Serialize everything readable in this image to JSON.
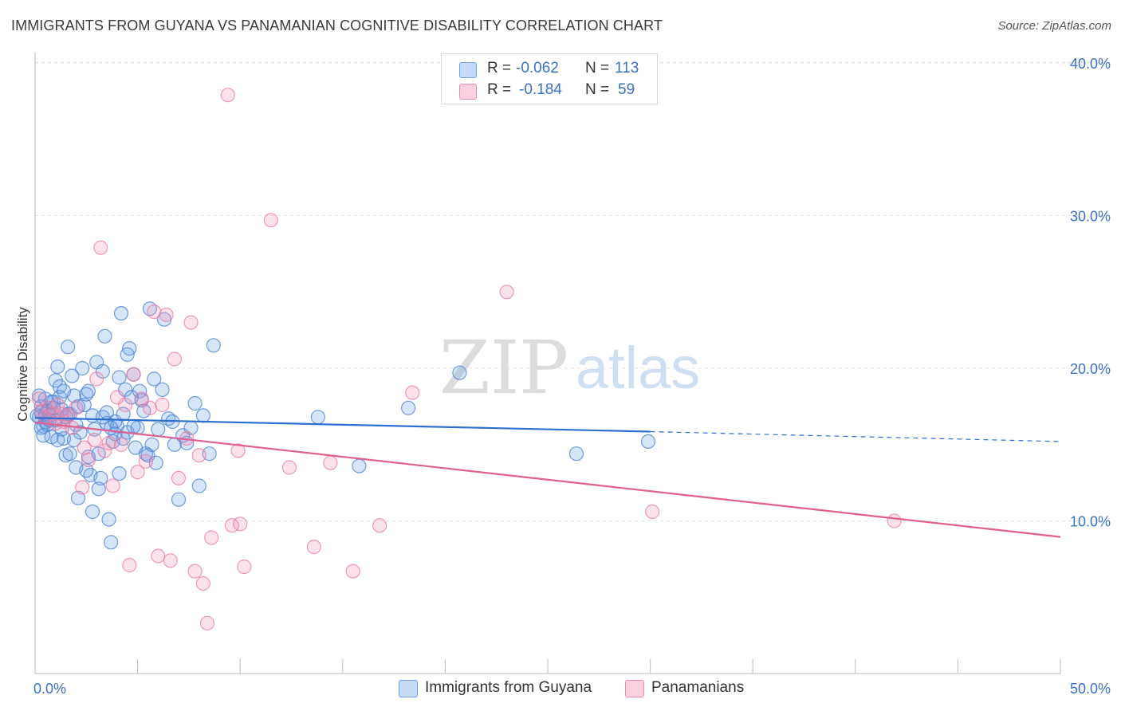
{
  "header": {
    "title": "IMMIGRANTS FROM GUYANA VS PANAMANIAN COGNITIVE DISABILITY CORRELATION CHART",
    "source": "Source: ZipAtlas.com"
  },
  "watermark": {
    "zip": "ZIP",
    "atlas": "atlas"
  },
  "legend_top": {
    "rows": [
      {
        "r_label": "R =",
        "r_value": "-0.062",
        "n_label": "N =",
        "n_value": "113",
        "color": "#6fa3e8"
      },
      {
        "r_label": "R =",
        "r_value": "-0.184",
        "n_label": "N =",
        "n_value": "59",
        "color": "#f08bb0"
      }
    ]
  },
  "legend_bottom": {
    "items": [
      {
        "label": "Immigrants from Guyana",
        "color": "#6fa3e8"
      },
      {
        "label": "Panamanians",
        "color": "#f08bb0"
      }
    ]
  },
  "chart_data": {
    "type": "scatter",
    "title": "IMMIGRANTS FROM GUYANA VS PANAMANIAN COGNITIVE DISABILITY CORRELATION CHART",
    "xlabel": "",
    "ylabel": "Cognitive Disability",
    "xlim": [
      0,
      50
    ],
    "ylim": [
      0,
      42
    ],
    "x_tick_labels": [
      "0.0%",
      "50.0%"
    ],
    "y_ticks": [
      10,
      20,
      30,
      40
    ],
    "y_tick_labels": [
      "10.0%",
      "20.0%",
      "30.0%",
      "40.0%"
    ],
    "grid": true,
    "legend_position": "top-center and bottom",
    "series": [
      {
        "name": "Immigrants from Guyana",
        "color": "#6fa3e8",
        "line_color": "#2d6fd0",
        "trend": {
          "x0": 0,
          "y0": 16.75,
          "x1": 30,
          "y1": 15.85,
          "dashed_to_x": 50,
          "dashed_to_y": 15.2
        },
        "points": [
          [
            0.2,
            16.8
          ],
          [
            0.3,
            17.5
          ],
          [
            0.4,
            16.2
          ],
          [
            0.5,
            18.0
          ],
          [
            0.5,
            16.5
          ],
          [
            0.6,
            17.2
          ],
          [
            0.7,
            16.9
          ],
          [
            0.8,
            15.5
          ],
          [
            0.9,
            17.8
          ],
          [
            1.0,
            19.2
          ],
          [
            1.0,
            16.6
          ],
          [
            1.1,
            20.1
          ],
          [
            1.2,
            18.8
          ],
          [
            1.3,
            17.3
          ],
          [
            1.4,
            15.4
          ],
          [
            1.5,
            14.3
          ],
          [
            1.5,
            16.8
          ],
          [
            1.6,
            21.4
          ],
          [
            1.7,
            17.0
          ],
          [
            1.8,
            19.5
          ],
          [
            1.9,
            18.2
          ],
          [
            2.0,
            16.3
          ],
          [
            2.0,
            13.5
          ],
          [
            2.1,
            11.5
          ],
          [
            2.2,
            15.8
          ],
          [
            2.3,
            20.0
          ],
          [
            2.4,
            17.6
          ],
          [
            2.5,
            18.3
          ],
          [
            2.6,
            14.2
          ],
          [
            2.7,
            13.0
          ],
          [
            2.8,
            10.6
          ],
          [
            2.9,
            16.0
          ],
          [
            3.0,
            20.4
          ],
          [
            3.1,
            14.4
          ],
          [
            3.2,
            12.8
          ],
          [
            3.3,
            19.8
          ],
          [
            3.4,
            22.1
          ],
          [
            3.5,
            16.4
          ],
          [
            3.6,
            10.1
          ],
          [
            3.7,
            8.6
          ],
          [
            3.8,
            15.2
          ],
          [
            3.9,
            16.5
          ],
          [
            4.0,
            16.2
          ],
          [
            4.1,
            13.1
          ],
          [
            4.2,
            23.6
          ],
          [
            4.3,
            17.0
          ],
          [
            4.4,
            18.6
          ],
          [
            4.5,
            15.8
          ],
          [
            4.6,
            21.3
          ],
          [
            4.7,
            18.1
          ],
          [
            4.8,
            19.6
          ],
          [
            4.9,
            14.8
          ],
          [
            5.0,
            16.1
          ],
          [
            5.1,
            18.5
          ],
          [
            5.2,
            17.9
          ],
          [
            5.3,
            17.2
          ],
          [
            5.4,
            14.4
          ],
          [
            5.5,
            14.3
          ],
          [
            5.6,
            23.9
          ],
          [
            5.7,
            15.0
          ],
          [
            5.8,
            19.3
          ],
          [
            5.9,
            13.8
          ],
          [
            6.0,
            16.0
          ],
          [
            6.2,
            18.6
          ],
          [
            6.3,
            23.2
          ],
          [
            6.5,
            16.7
          ],
          [
            6.7,
            16.5
          ],
          [
            6.8,
            15.0
          ],
          [
            7.0,
            11.4
          ],
          [
            7.2,
            15.6
          ],
          [
            7.4,
            15.1
          ],
          [
            7.6,
            16.1
          ],
          [
            7.8,
            17.7
          ],
          [
            8.0,
            12.3
          ],
          [
            8.2,
            16.9
          ],
          [
            8.5,
            14.4
          ],
          [
            8.7,
            21.5
          ],
          [
            0.3,
            16.1
          ],
          [
            0.6,
            16.3
          ],
          [
            0.8,
            17.8
          ],
          [
            1.2,
            18.1
          ],
          [
            1.3,
            16.0
          ],
          [
            1.7,
            14.4
          ],
          [
            1.9,
            15.3
          ],
          [
            2.1,
            17.5
          ],
          [
            2.5,
            13.3
          ],
          [
            2.6,
            18.5
          ],
          [
            2.8,
            16.9
          ],
          [
            3.1,
            12.1
          ],
          [
            3.3,
            16.8
          ],
          [
            3.5,
            17.1
          ],
          [
            3.7,
            16.1
          ],
          [
            3.9,
            15.7
          ],
          [
            4.1,
            19.4
          ],
          [
            4.3,
            15.4
          ],
          [
            4.5,
            20.9
          ],
          [
            4.8,
            16.2
          ],
          [
            0.1,
            16.9
          ],
          [
            0.2,
            18.2
          ],
          [
            0.4,
            15.6
          ],
          [
            0.5,
            17.0
          ],
          [
            0.7,
            16.6
          ],
          [
            0.9,
            17.4
          ],
          [
            1.1,
            15.3
          ],
          [
            1.4,
            18.5
          ],
          [
            1.6,
            17.0
          ],
          [
            13.8,
            16.8
          ],
          [
            15.8,
            13.6
          ],
          [
            18.2,
            17.4
          ],
          [
            20.7,
            19.7
          ],
          [
            26.4,
            14.4
          ],
          [
            29.9,
            15.2
          ],
          [
            0.3,
            17.1
          ]
        ]
      },
      {
        "name": "Panamanians",
        "color": "#f08bb0",
        "line_color": "#e0608f",
        "trend": {
          "x0": 0,
          "y0": 16.45,
          "x1": 50,
          "y1": 8.95
        },
        "points": [
          [
            0.2,
            18.0
          ],
          [
            0.3,
            17.2
          ],
          [
            0.5,
            16.8
          ],
          [
            0.7,
            17.4
          ],
          [
            0.9,
            17.0
          ],
          [
            1.1,
            17.6
          ],
          [
            1.4,
            16.5
          ],
          [
            1.6,
            16.9
          ],
          [
            1.8,
            16.1
          ],
          [
            2.0,
            17.4
          ],
          [
            2.3,
            12.2
          ],
          [
            2.6,
            14.0
          ],
          [
            2.9,
            15.3
          ],
          [
            3.0,
            19.3
          ],
          [
            3.2,
            27.9
          ],
          [
            3.4,
            14.6
          ],
          [
            3.6,
            15.1
          ],
          [
            3.8,
            12.3
          ],
          [
            4.0,
            18.1
          ],
          [
            4.2,
            15.0
          ],
          [
            4.4,
            17.6
          ],
          [
            4.6,
            7.1
          ],
          [
            4.8,
            19.6
          ],
          [
            5.0,
            13.2
          ],
          [
            5.2,
            18.0
          ],
          [
            5.4,
            13.9
          ],
          [
            5.6,
            17.4
          ],
          [
            5.8,
            23.7
          ],
          [
            6.0,
            7.7
          ],
          [
            6.2,
            17.6
          ],
          [
            6.4,
            23.5
          ],
          [
            6.6,
            7.4
          ],
          [
            6.8,
            20.6
          ],
          [
            7.0,
            12.8
          ],
          [
            7.4,
            15.4
          ],
          [
            7.6,
            23.0
          ],
          [
            7.8,
            6.7
          ],
          [
            8.0,
            14.3
          ],
          [
            8.2,
            5.9
          ],
          [
            8.4,
            3.3
          ],
          [
            8.6,
            8.9
          ],
          [
            9.4,
            37.9
          ],
          [
            9.6,
            9.7
          ],
          [
            9.9,
            14.6
          ],
          [
            10.0,
            9.8
          ],
          [
            10.2,
            7.0
          ],
          [
            11.5,
            29.7
          ],
          [
            12.4,
            13.5
          ],
          [
            13.6,
            8.3
          ],
          [
            14.4,
            13.8
          ],
          [
            15.5,
            6.7
          ],
          [
            16.8,
            9.7
          ],
          [
            18.4,
            18.4
          ],
          [
            23.0,
            25.0
          ],
          [
            30.1,
            10.6
          ],
          [
            41.9,
            10.0
          ],
          [
            1.0,
            16.4
          ],
          [
            1.3,
            17.0
          ],
          [
            2.4,
            14.8
          ]
        ]
      }
    ]
  }
}
